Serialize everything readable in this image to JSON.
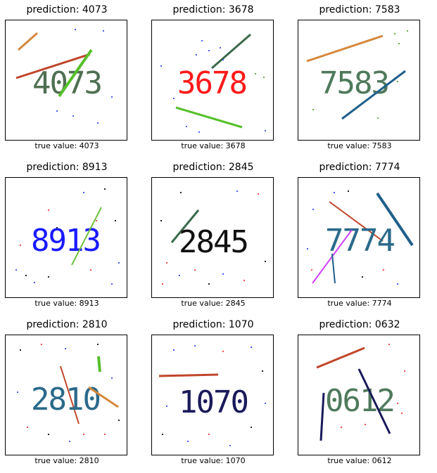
{
  "grid": {
    "panels": [
      {
        "prediction": "prediction: 4073",
        "captcha_text": "4073",
        "true_value": "true value: 4073",
        "text_color": "#4f6f52"
      },
      {
        "prediction": "prediction: 3678",
        "captcha_text": "3678",
        "true_value": "true value: 3678",
        "text_color": "#ff1a1a"
      },
      {
        "prediction": "prediction: 7583",
        "captcha_text": "7583",
        "true_value": "true value: 7583",
        "text_color": "#4f7a5c"
      },
      {
        "prediction": "prediction: 8913",
        "captcha_text": "8913",
        "true_value": "true value: 8913",
        "text_color": "#1a1aff"
      },
      {
        "prediction": "prediction: 2845",
        "captcha_text": "2845",
        "true_value": "true value: 2845",
        "text_color": "#111111"
      },
      {
        "prediction": "prediction: 7774",
        "captcha_text": "7774",
        "true_value": "true value: 7774",
        "text_color": "#2a6a8a"
      },
      {
        "prediction": "prediction: 2810",
        "captcha_text": "2810",
        "true_value": "true value: 2810",
        "text_color": "#2a6a8a"
      },
      {
        "prediction": "prediction: 1070",
        "captcha_text": "1070",
        "true_value": "true value: 1070",
        "text_color": "#1a1a5a"
      },
      {
        "prediction": "prediction: 0632",
        "captcha_text": "0612",
        "true_value": "true value: 0612",
        "text_color": "#4f7a5c"
      }
    ]
  }
}
